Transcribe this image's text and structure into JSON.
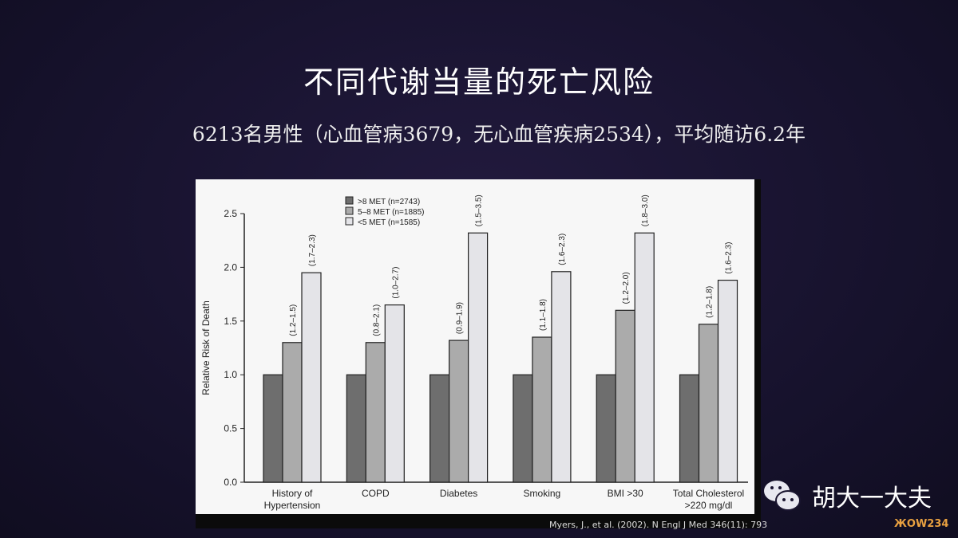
{
  "title": "不同代谢当量的死亡风险",
  "subtitle": "6213名男性（心血管病3679，无心血管疾病2534），平均随访6.2年",
  "citation": "Myers, J., et al. (2002). N Engl J Med 346(11): 793",
  "watermark": {
    "name": "胡大一大夫",
    "icon": "wechat-icon",
    "logo": "ЖOW234"
  },
  "chart_data": {
    "type": "bar",
    "ylabel": "Relative Risk of Death",
    "ylim": [
      0,
      2.5
    ],
    "yticks": [
      "0.0",
      "0.5",
      "1.0",
      "1.5",
      "2.0",
      "2.5"
    ],
    "categories": [
      [
        "History of",
        "Hypertension"
      ],
      [
        "COPD"
      ],
      [
        "Diabetes"
      ],
      [
        "Smoking"
      ],
      [
        "BMI >30"
      ],
      [
        "Total Cholesterol",
        ">220 mg/dl"
      ]
    ],
    "series": [
      {
        "name": ">8 MET (n=2743)",
        "color": "#6e6e6e",
        "values": [
          1.0,
          1.0,
          1.0,
          1.0,
          1.0,
          1.0
        ],
        "ci": [
          "",
          "",
          "",
          "",
          "",
          ""
        ]
      },
      {
        "name": "5–8 MET (n=1885)",
        "color": "#ababab",
        "values": [
          1.3,
          1.3,
          1.32,
          1.35,
          1.6,
          1.47
        ],
        "ci": [
          "(1.2–1.5)",
          "(0.8–2.1)",
          "(0.9–1.9)",
          "(1.1–1.8)",
          "(1.2–2.0)",
          "(1.2–1.8)"
        ]
      },
      {
        "name": "<5 MET (n=1585)",
        "color": "#e4e4e8",
        "values": [
          1.95,
          1.65,
          2.32,
          1.96,
          2.32,
          1.88
        ],
        "ci": [
          "(1.7–2.3)",
          "(1.0–2.7)",
          "(1.5–3.5)",
          "(1.6–2.3)",
          "(1.8–3.0)",
          "(1.6–2.3)"
        ]
      }
    ],
    "legend": "top-center",
    "grid": false
  }
}
